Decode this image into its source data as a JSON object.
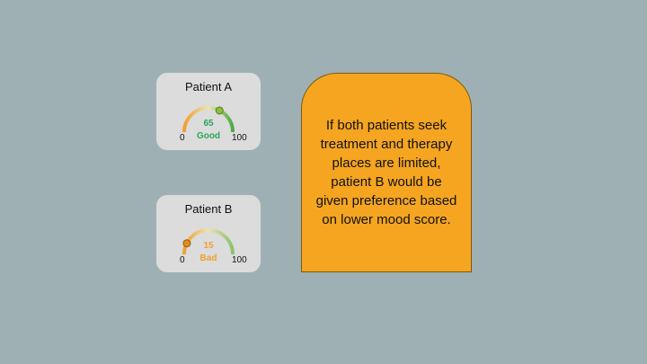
{
  "patients": [
    {
      "label": "Patient A",
      "score": 65,
      "status": "Good",
      "min": "0",
      "max": "100",
      "status_color": "#2ca55a"
    },
    {
      "label": "Patient B",
      "score": 15,
      "status": "Bad",
      "min": "0",
      "max": "100",
      "status_color": "#f0a030"
    }
  ],
  "note": "If both patients seek treatment and therapy places are limited, patient B would be given preference based on lower mood score.",
  "colors": {
    "background": "#9eb0b4",
    "card": "#dcdcdc",
    "note_box": "#f5a520",
    "gauge_low": "#f0a030",
    "gauge_mid": "#e8dfa8",
    "gauge_high": "#4caa45"
  }
}
